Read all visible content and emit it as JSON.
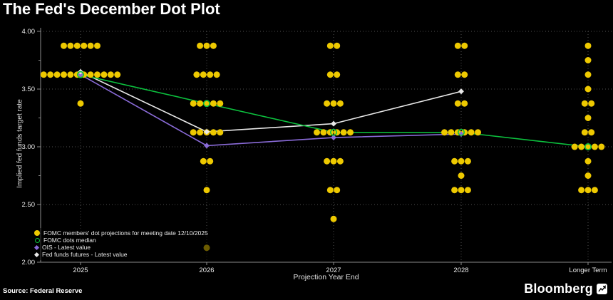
{
  "title": "The Fed's December Dot Plot",
  "source": "Source: Federal Reserve",
  "brand": {
    "name": "Bloomberg"
  },
  "chart_data": {
    "type": "scatter",
    "title": "The Fed's December Dot Plot",
    "xlabel": "Projection Year End",
    "ylabel": "Implied fed funds target rate",
    "ylim": [
      2.0,
      4.0
    ],
    "grid": "dotted",
    "legend_position": "bottom-left",
    "background": "#000000",
    "dot_color": "#eec900",
    "axis_color": "#8a8a8a",
    "grid_color": "#4f4f4f",
    "tick_text_color": "#e8e8e8",
    "categories": [
      "2025",
      "2026",
      "2027",
      "2028",
      "Longer Term"
    ],
    "yticks": [
      {
        "value": 4.0,
        "label": "4.00"
      },
      {
        "value": 3.5,
        "label": "3.50"
      },
      {
        "value": 3.0,
        "label": "3.00"
      },
      {
        "value": 2.5,
        "label": "2.50"
      },
      {
        "value": 2.0,
        "label": "2.00"
      }
    ],
    "dot_columns": [
      {
        "category": "2025",
        "dots": [
          {
            "rate": 3.875,
            "count": 6
          },
          {
            "rate": 3.625,
            "count": 12
          },
          {
            "rate": 3.375,
            "count": 1
          }
        ]
      },
      {
        "category": "2026",
        "dots": [
          {
            "rate": 3.875,
            "count": 3
          },
          {
            "rate": 3.625,
            "count": 4
          },
          {
            "rate": 3.375,
            "count": 5
          },
          {
            "rate": 3.125,
            "count": 5
          },
          {
            "rate": 2.875,
            "count": 2
          },
          {
            "rate": 2.625,
            "count": 1
          },
          {
            "rate": 2.125,
            "count": 1
          }
        ]
      },
      {
        "category": "2027",
        "dots": [
          {
            "rate": 3.875,
            "count": 2
          },
          {
            "rate": 3.625,
            "count": 2
          },
          {
            "rate": 3.375,
            "count": 3
          },
          {
            "rate": 3.125,
            "count": 6
          },
          {
            "rate": 2.875,
            "count": 3
          },
          {
            "rate": 2.625,
            "count": 2
          },
          {
            "rate": 2.375,
            "count": 1
          }
        ]
      },
      {
        "category": "2028",
        "dots": [
          {
            "rate": 3.875,
            "count": 2
          },
          {
            "rate": 3.625,
            "count": 2
          },
          {
            "rate": 3.375,
            "count": 2
          },
          {
            "rate": 3.125,
            "count": 6
          },
          {
            "rate": 2.875,
            "count": 3
          },
          {
            "rate": 2.75,
            "count": 1
          },
          {
            "rate": 2.625,
            "count": 3
          }
        ]
      },
      {
        "category": "Longer Term",
        "dots": [
          {
            "rate": 3.875,
            "count": 1
          },
          {
            "rate": 3.75,
            "count": 1
          },
          {
            "rate": 3.625,
            "count": 1
          },
          {
            "rate": 3.5,
            "count": 1
          },
          {
            "rate": 3.375,
            "count": 2
          },
          {
            "rate": 3.25,
            "count": 1
          },
          {
            "rate": 3.125,
            "count": 2
          },
          {
            "rate": 3.0,
            "count": 5
          },
          {
            "rate": 2.875,
            "count": 1
          },
          {
            "rate": 2.75,
            "count": 1
          },
          {
            "rate": 2.625,
            "count": 3
          }
        ]
      }
    ],
    "series": [
      {
        "name": "OIS - Latest value",
        "color": "#8a6bd8",
        "marker": "diamond",
        "values": [
          3.625,
          3.01,
          3.08,
          3.11,
          null
        ]
      },
      {
        "name": "Fed funds futures - Latest value",
        "color": "#e8e8e8",
        "marker": "diamond",
        "values": [
          3.65,
          3.13,
          3.2,
          3.48,
          null
        ]
      },
      {
        "name": "FOMC dots median",
        "color": "#0cc13e",
        "marker": "ring",
        "values": [
          3.625,
          3.375,
          3.125,
          3.125,
          3.0
        ]
      }
    ],
    "legend": [
      {
        "label": "FOMC members' dot projections for meeting date 12/10/2025",
        "marker": "circle",
        "color": "#eec900"
      },
      {
        "label": "FOMC dots median",
        "marker": "ring",
        "color": "#0cc13e"
      },
      {
        "label": "OIS - Latest value",
        "marker": "diamond",
        "color": "#8a6bd8"
      },
      {
        "label": "Fed funds futures - Latest value",
        "marker": "diamond",
        "color": "#e8e8e8"
      }
    ]
  }
}
